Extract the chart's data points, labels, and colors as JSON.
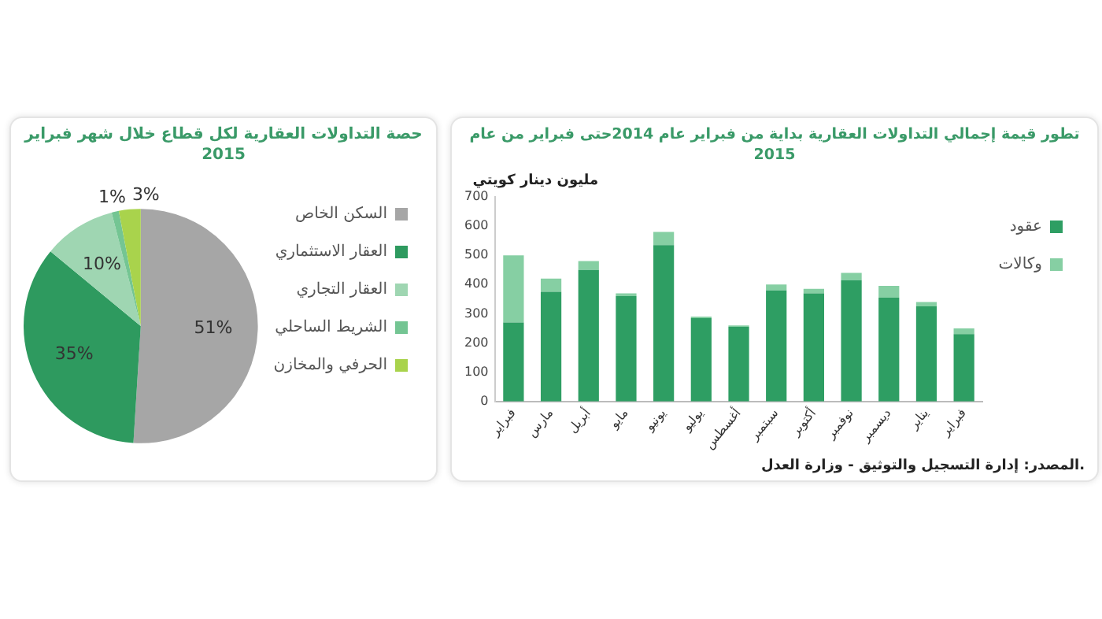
{
  "chart_data": [
    {
      "type": "pie",
      "title": "حصة التداولات العقارية لكل قطاع خلال شهر فبراير 2015",
      "categories": [
        "السكن الخاص",
        "العقار الاستثماري",
        "العقار التجاري",
        "الشريط الساحلي",
        "الحرفي والمخازن"
      ],
      "values": [
        51,
        35,
        10,
        1,
        3
      ],
      "colors": [
        "#a6a6a6",
        "#2e9a5f",
        "#9fd6b2",
        "#74c593",
        "#a9d34c"
      ],
      "value_labels": [
        "51%",
        "35%",
        "10%",
        "1%",
        "3%"
      ],
      "legend": "right"
    },
    {
      "type": "bar",
      "title": "تطور قيمة إجمالي التداولات العقارية بداية من فبراير عام 2014حتى فبراير من عام 2015",
      "ylabel": "مليون دينار كويتي",
      "categories": [
        "فبراير",
        "مارس",
        "أبريل",
        "مايو",
        "يونيو",
        "يوليو",
        "أغسطس",
        "سبتمبر",
        "أكتوبر",
        "نوفمبر",
        "ديسمبر",
        "يناير",
        "فبراير"
      ],
      "series": [
        {
          "name": "عقود",
          "color": "#2e9e63",
          "values": [
            270,
            375,
            450,
            360,
            535,
            285,
            255,
            380,
            370,
            415,
            355,
            325,
            230
          ]
        },
        {
          "name": "وكالات",
          "color": "#86cfa3",
          "values": [
            230,
            45,
            30,
            10,
            45,
            5,
            5,
            20,
            15,
            25,
            40,
            15,
            20
          ]
        }
      ],
      "stacked": true,
      "ylim": [
        0,
        700
      ],
      "yticks": [
        0,
        100,
        200,
        300,
        400,
        500,
        600,
        700
      ],
      "grid": false,
      "legend": "top right",
      "annotations": [
        "المصدر: إدارة التسجيل والتوثيق - وزارة العدل."
      ]
    }
  ]
}
